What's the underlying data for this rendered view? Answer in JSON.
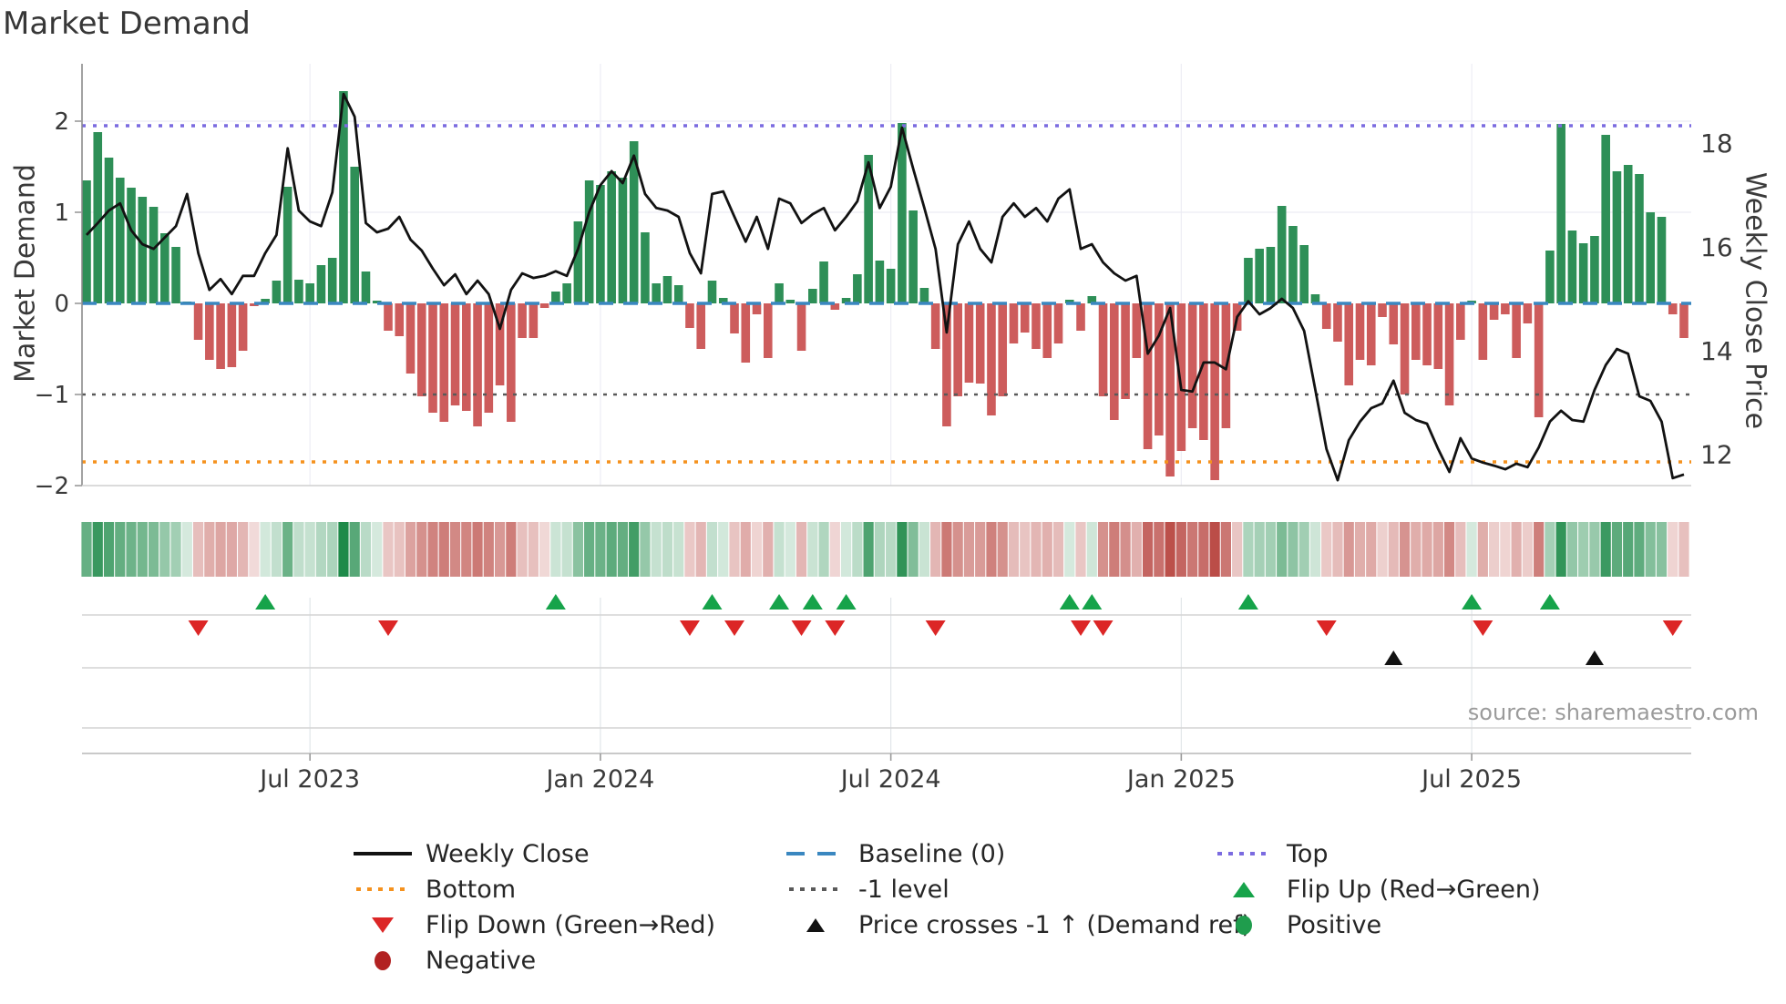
{
  "chart": {
    "title": "Market Demand",
    "ylabel_left": "Market Demand",
    "ylabel_right": "Weekly Close Price",
    "source": "source: sharemaestro.com"
  },
  "axes": {
    "left_ticks": [
      {
        "label": "2",
        "v": 2
      },
      {
        "label": "1",
        "v": 1
      },
      {
        "label": "0",
        "v": 0
      },
      {
        "label": "−1",
        "v": -1
      },
      {
        "label": "−2",
        "v": -2
      }
    ],
    "right_ticks": [
      {
        "label": "18",
        "p": 18
      },
      {
        "label": "16",
        "p": 16
      },
      {
        "label": "14",
        "p": 14
      },
      {
        "label": "12",
        "p": 12
      }
    ],
    "x_ticks": [
      {
        "label": "Jul 2023",
        "week": 20
      },
      {
        "label": "Jan 2024",
        "week": 46
      },
      {
        "label": "Jul 2024",
        "week": 72
      },
      {
        "label": "Jan 2025",
        "week": 98
      },
      {
        "label": "Jul 2025",
        "week": 124
      }
    ]
  },
  "legend": {
    "weekly_close": "Weekly Close",
    "baseline": "Baseline (0)",
    "top": "Top",
    "bottom": "Bottom",
    "minus1": "-1 level",
    "flip_up": "Flip Up (Red→Green)",
    "flip_down": "Flip Down (Green→Red)",
    "price_cross": "Price crosses -1 ↑ (Demand ref)",
    "positive": "Positive",
    "negative": "Negative"
  },
  "colors": {
    "barpos": "#2e8f57",
    "barneg": "#cd5c5c",
    "line": "#121212",
    "baseline": "#3a87c0",
    "top": "#7b6be0",
    "bottom": "#f5921e",
    "minus1": "#5a5a5a",
    "flipup": "#16a34a",
    "flipdown": "#dc2626",
    "positive": "#1f9d4d",
    "negative": "#b22222",
    "heat_green": "30,138,73",
    "heat_red": "180,58,52"
  },
  "chart_data": {
    "type": "combo",
    "title": "Market Demand",
    "x_unit": "week",
    "n_weeks": 144,
    "ylim_left": [
      -2,
      2.65
    ],
    "ylim_right": [
      11.4,
      19.5
    ],
    "grid": true,
    "legend_position": "bottom",
    "ref_lines": {
      "top": 1.95,
      "baseline": 0,
      "minus1": -1,
      "bottom": -1.74
    },
    "series": [
      {
        "name": "Market Demand",
        "type": "bar",
        "axis": "left",
        "values": [
          1.35,
          1.88,
          1.6,
          1.38,
          1.27,
          1.17,
          1.06,
          0.77,
          0.62,
          0.02,
          -0.4,
          -0.62,
          -0.72,
          -0.7,
          -0.52,
          -0.03,
          0.05,
          0.25,
          1.28,
          0.26,
          0.22,
          0.42,
          0.5,
          2.33,
          1.5,
          0.35,
          0.03,
          -0.3,
          -0.36,
          -0.77,
          -1.02,
          -1.2,
          -1.3,
          -1.12,
          -1.18,
          -1.35,
          -1.2,
          -0.9,
          -1.3,
          -0.38,
          -0.38,
          -0.05,
          0.13,
          0.22,
          0.9,
          1.35,
          1.3,
          1.45,
          1.38,
          1.78,
          0.78,
          0.22,
          0.3,
          0.2,
          -0.27,
          -0.5,
          0.25,
          0.06,
          -0.33,
          -0.65,
          -0.12,
          -0.6,
          0.22,
          0.04,
          -0.52,
          0.16,
          0.46,
          -0.07,
          0.06,
          0.32,
          1.63,
          0.47,
          0.38,
          1.98,
          1.02,
          0.17,
          -0.5,
          -1.35,
          -1.02,
          -0.87,
          -0.88,
          -1.23,
          -1.02,
          -0.44,
          -0.32,
          -0.5,
          -0.6,
          -0.44,
          0.04,
          -0.3,
          0.08,
          -1.02,
          -1.28,
          -1.05,
          -0.6,
          -1.6,
          -1.45,
          -1.9,
          -1.62,
          -1.37,
          -1.5,
          -1.94,
          -1.37,
          -0.3,
          0.5,
          0.6,
          0.62,
          1.07,
          0.85,
          0.64,
          0.1,
          -0.28,
          -0.42,
          -0.9,
          -0.62,
          -0.68,
          -0.15,
          -0.45,
          -1.0,
          -0.62,
          -0.68,
          -0.72,
          -1.12,
          -0.4,
          0.03,
          -0.62,
          -0.18,
          -0.12,
          -0.6,
          -0.22,
          -1.25,
          0.58,
          1.97,
          0.8,
          0.66,
          0.74,
          1.85,
          1.45,
          1.52,
          1.42,
          1.0,
          0.95,
          -0.12,
          -0.38
        ]
      },
      {
        "name": "Weekly Close",
        "type": "line",
        "axis": "right",
        "values": [
          16.23,
          16.46,
          16.7,
          16.84,
          16.32,
          16.05,
          15.96,
          16.18,
          16.4,
          17.02,
          15.88,
          15.17,
          15.38,
          15.09,
          15.44,
          15.44,
          15.88,
          16.23,
          17.9,
          16.7,
          16.49,
          16.4,
          17.05,
          18.95,
          18.51,
          16.46,
          16.28,
          16.35,
          16.58,
          16.14,
          15.93,
          15.58,
          15.26,
          15.47,
          15.09,
          15.35,
          15.09,
          14.42,
          15.17,
          15.49,
          15.4,
          15.44,
          15.53,
          15.44,
          15.96,
          16.67,
          17.19,
          17.46,
          17.23,
          17.76,
          17.02,
          16.75,
          16.7,
          16.58,
          15.88,
          15.49,
          17.02,
          17.07,
          16.58,
          16.1,
          16.58,
          15.96,
          16.93,
          16.84,
          16.46,
          16.63,
          16.75,
          16.32,
          16.58,
          16.88,
          17.63,
          16.75,
          17.16,
          18.3,
          17.51,
          16.75,
          15.96,
          14.35,
          16.05,
          16.49,
          15.96,
          15.7,
          16.58,
          16.84,
          16.58,
          16.75,
          16.49,
          16.93,
          17.11,
          15.96,
          16.05,
          15.7,
          15.49,
          15.35,
          15.44,
          13.94,
          14.29,
          14.82,
          13.24,
          13.21,
          13.77,
          13.77,
          13.64,
          14.65,
          14.95,
          14.7,
          14.82,
          15.0,
          14.82,
          14.38,
          13.24,
          12.1,
          11.5,
          12.27,
          12.63,
          12.89,
          12.98,
          13.42,
          12.8,
          12.66,
          12.59,
          12.1,
          11.66,
          12.31,
          11.92,
          11.84,
          11.78,
          11.71,
          11.82,
          11.75,
          12.13,
          12.63,
          12.84,
          12.66,
          12.63,
          13.24,
          13.72,
          14.03,
          13.94,
          13.12,
          13.03,
          12.63,
          11.54,
          11.61
        ]
      },
      {
        "name": "Demand heat strip",
        "type": "heatmap",
        "derived_from": "Market Demand"
      }
    ],
    "markers": {
      "flip_up_weeks": [
        16,
        42,
        56,
        62,
        65,
        68,
        88,
        90,
        104,
        124,
        131
      ],
      "flip_down_weeks": [
        10,
        27,
        54,
        58,
        64,
        67,
        76,
        89,
        91,
        111,
        125,
        142
      ],
      "price_cross_weeks": [
        117,
        135
      ]
    }
  }
}
